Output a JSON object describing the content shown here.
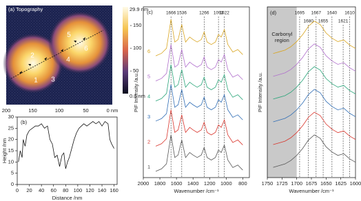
{
  "chart_data": [
    {
      "type": "image",
      "title": "(a) Topography",
      "colorbar_labels": [
        "29.9 nm",
        "0.0 nm"
      ],
      "xlim": [
        200,
        0
      ],
      "xticks": [
        200,
        150,
        100,
        50,
        {
          "value": 0,
          "label": "0 nm"
        }
      ],
      "ylim": [
        -24,
        194
      ],
      "yticks": [
        50,
        100,
        150
      ],
      "point_labels": [
        "1",
        "2",
        "3",
        "4",
        "5",
        "6"
      ]
    },
    {
      "type": "line",
      "title": "(b)",
      "xlabel": "Distance /nm",
      "ylabel": "Height /nm",
      "xlim": [
        0,
        165
      ],
      "xticks": [
        0,
        20,
        40,
        60,
        80,
        100,
        120,
        140,
        160
      ],
      "ylim": [
        0,
        30
      ],
      "yticks": [
        0,
        5,
        10,
        15,
        20,
        25,
        30
      ],
      "x": [
        2,
        5,
        8,
        10,
        13,
        16,
        20,
        25,
        30,
        35,
        40,
        45,
        50,
        54,
        58,
        62,
        66,
        70,
        74,
        77,
        80,
        83,
        86,
        90,
        94,
        98,
        102,
        106,
        110,
        115,
        120,
        125,
        130,
        135,
        140,
        145,
        150,
        153,
        156,
        160
      ],
      "series": [
        {
          "color": "#111111",
          "values": [
            10,
            15,
            12,
            20,
            17,
            22,
            24,
            25,
            26,
            26,
            27,
            25,
            26,
            20,
            18,
            12,
            13,
            8,
            13,
            14,
            7,
            10,
            12,
            16,
            20,
            23,
            25,
            26,
            27,
            26,
            27,
            28,
            27,
            28,
            26,
            28,
            27,
            20,
            18,
            16
          ]
        }
      ]
    },
    {
      "type": "line",
      "title": "(c)",
      "xlabel": "Wavenumber /cm⁻¹",
      "ylabel": "PiF Intensity /a.u.",
      "xlim": [
        2000,
        720
      ],
      "xticks": [
        2000,
        1800,
        1600,
        1400,
        1200,
        1000,
        800
      ],
      "ylim": [
        0,
        6.8
      ],
      "peaks": [
        1666,
        1536,
        1266,
        1093,
        1022
      ],
      "x": [
        1850,
        1780,
        1720,
        1666,
        1620,
        1580,
        1536,
        1490,
        1440,
        1400,
        1350,
        1300,
        1266,
        1230,
        1180,
        1130,
        1093,
        1060,
        1022,
        980,
        920,
        860,
        800
      ],
      "series": [
        {
          "name": "1",
          "color": "#555555",
          "values": [
            0.25,
            0.35,
            0.55,
            1.7,
            0.8,
            0.9,
            1.5,
            0.8,
            1.0,
            0.9,
            0.8,
            0.9,
            1.2,
            0.8,
            0.7,
            0.8,
            1.1,
            1.0,
            1.3,
            0.7,
            0.4,
            0.5,
            0.3
          ]
        },
        {
          "name": "2",
          "color": "#d9342b",
          "values": [
            1.25,
            1.35,
            1.55,
            2.7,
            1.8,
            1.9,
            2.5,
            1.8,
            2.0,
            1.9,
            1.8,
            1.9,
            2.2,
            1.8,
            1.7,
            1.8,
            2.1,
            2.0,
            2.3,
            1.7,
            1.4,
            1.5,
            1.3
          ]
        },
        {
          "name": "3",
          "color": "#2f6db5",
          "values": [
            2.25,
            2.35,
            2.55,
            3.7,
            2.8,
            2.9,
            3.5,
            2.8,
            3.0,
            2.9,
            2.8,
            2.9,
            3.2,
            2.8,
            2.7,
            2.8,
            3.1,
            3.0,
            3.3,
            2.7,
            2.4,
            2.5,
            2.3
          ]
        },
        {
          "name": "4",
          "color": "#2aa57a",
          "values": [
            3.05,
            3.15,
            3.35,
            4.5,
            3.6,
            3.7,
            4.3,
            3.6,
            3.8,
            3.7,
            3.6,
            3.7,
            4.0,
            3.6,
            3.5,
            3.6,
            3.9,
            3.8,
            4.1,
            3.5,
            3.2,
            3.3,
            3.1
          ]
        },
        {
          "name": "5",
          "color": "#b06fcc",
          "values": [
            3.85,
            3.95,
            4.15,
            5.3,
            4.4,
            4.5,
            5.1,
            4.4,
            4.6,
            4.5,
            4.4,
            4.5,
            4.8,
            4.4,
            4.3,
            4.4,
            4.7,
            4.6,
            4.9,
            4.3,
            4.0,
            4.1,
            3.9
          ]
        },
        {
          "name": "6",
          "color": "#d9a520",
          "values": [
            4.85,
            4.95,
            5.15,
            6.3,
            5.4,
            5.5,
            6.1,
            5.4,
            5.6,
            5.5,
            5.4,
            5.5,
            5.8,
            5.4,
            5.3,
            5.4,
            5.7,
            5.6,
            5.9,
            5.3,
            5.0,
            5.1,
            4.9
          ]
        }
      ]
    },
    {
      "type": "line",
      "title": "(d)",
      "xlabel": "Wavenumber /cm⁻¹",
      "ylabel": "PiF Intensity /a.u.",
      "xlim": [
        1750,
        1600
      ],
      "xticks": [
        1750,
        1725,
        1700,
        1675,
        1650,
        1625,
        1600
      ],
      "ylim": [
        0,
        6
      ],
      "shade": [
        1750,
        1700
      ],
      "shade_label": [
        "Carbonyl",
        "region"
      ],
      "peaks": [
        1695,
        1680,
        1667,
        1655,
        1640,
        1621,
        1610
      ],
      "x": [
        1740,
        1730,
        1720,
        1710,
        1700,
        1690,
        1680,
        1670,
        1660,
        1650,
        1640,
        1630,
        1620,
        1610,
        1600
      ],
      "series": [
        {
          "color": "#555555",
          "values": [
            0.36,
            0.42,
            0.48,
            0.6,
            0.78,
            1.02,
            1.32,
            1.5,
            1.38,
            1.08,
            0.9,
            0.78,
            0.84,
            0.66,
            0.54
          ]
        },
        {
          "color": "#d9342b",
          "values": [
            1.16,
            1.22,
            1.28,
            1.4,
            1.58,
            1.82,
            2.12,
            2.3,
            2.18,
            1.88,
            1.7,
            1.58,
            1.64,
            1.46,
            1.34
          ]
        },
        {
          "color": "#2f6db5",
          "values": [
            1.96,
            2.02,
            2.08,
            2.2,
            2.38,
            2.62,
            2.92,
            3.1,
            2.98,
            2.68,
            2.5,
            2.38,
            2.44,
            2.26,
            2.14
          ]
        },
        {
          "color": "#2aa57a",
          "values": [
            2.76,
            2.82,
            2.88,
            3.0,
            3.18,
            3.42,
            3.72,
            3.9,
            3.78,
            3.48,
            3.3,
            3.18,
            3.24,
            3.06,
            2.94
          ]
        },
        {
          "color": "#b06fcc",
          "values": [
            3.56,
            3.62,
            3.68,
            3.8,
            3.98,
            4.22,
            4.52,
            4.7,
            4.58,
            4.28,
            4.1,
            3.98,
            4.04,
            3.86,
            3.74
          ]
        },
        {
          "color": "#d9a520",
          "values": [
            4.36,
            4.42,
            4.48,
            4.6,
            4.78,
            5.02,
            5.32,
            5.5,
            5.38,
            5.08,
            4.9,
            4.78,
            4.84,
            4.66,
            4.54
          ]
        }
      ]
    }
  ]
}
